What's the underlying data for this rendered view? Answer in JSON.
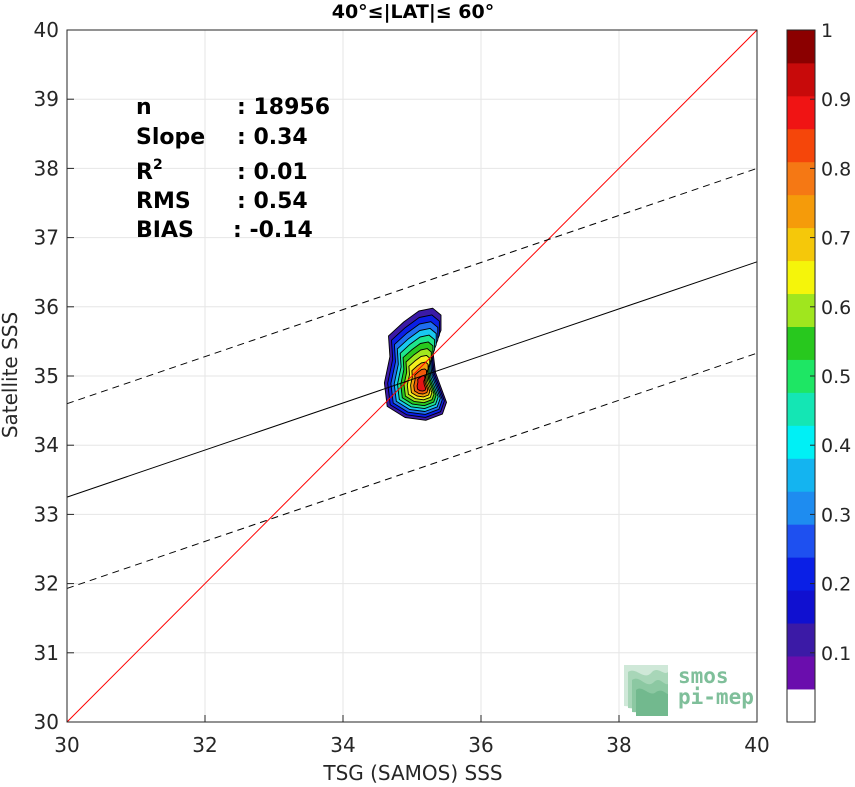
{
  "chart_data": {
    "type": "contour",
    "title": "40°≤|LAT|≤ 60°",
    "xlabel": "TSG (SAMOS) SSS",
    "ylabel": "Satellite SSS",
    "xlim": [
      30,
      40
    ],
    "ylim": [
      30,
      40
    ],
    "xticks": [
      "30",
      "32",
      "34",
      "36",
      "38",
      "40"
    ],
    "yticks": [
      "30",
      "31",
      "32",
      "33",
      "34",
      "35",
      "36",
      "37",
      "38",
      "39",
      "40"
    ],
    "grid": true,
    "lines": [
      {
        "style": "red-solid",
        "x": [
          30,
          40
        ],
        "y": [
          30,
          40
        ]
      },
      {
        "style": "black-solid",
        "x": [
          30,
          40
        ],
        "y": [
          33.25,
          36.65
        ]
      },
      {
        "style": "black-dashed",
        "x": [
          30,
          40
        ],
        "y": [
          34.6,
          38.0
        ]
      },
      {
        "style": "black-dashed",
        "x": [
          30,
          40
        ],
        "y": [
          31.93,
          35.33
        ]
      }
    ],
    "stats": [
      {
        "label": "n",
        "value": ": 18956"
      },
      {
        "label": "Slope",
        "value": ": 0.34"
      },
      {
        "label": "R",
        "sup": "2",
        "value": ": 0.01"
      },
      {
        "label": "RMS",
        "value": ": 0.54"
      },
      {
        "label": "BIAS",
        "value": ": -0.14"
      }
    ],
    "density_peak": {
      "x": 35.15,
      "y": 34.85
    },
    "contour_levels": [
      {
        "level": 0.05,
        "color": "#3b1aa6"
      },
      {
        "level": 0.15,
        "color": "#0a1fe6"
      },
      {
        "level": 0.25,
        "color": "#1e6ef0"
      },
      {
        "level": 0.35,
        "color": "#19c8f0"
      },
      {
        "level": 0.45,
        "color": "#1ee68c"
      },
      {
        "level": 0.55,
        "color": "#28c81e"
      },
      {
        "level": 0.6,
        "color": "#a0e61e"
      },
      {
        "level": 0.65,
        "color": "#f5f01e"
      },
      {
        "level": 0.75,
        "color": "#f5a00a"
      },
      {
        "level": 0.85,
        "color": "#f05a0a"
      },
      {
        "level": 0.95,
        "color": "#e61414"
      }
    ],
    "colorbar": {
      "range": [
        0,
        1
      ],
      "ticks": [
        "0.1",
        "0.2",
        "0.3",
        "0.4",
        "0.5",
        "0.6",
        "0.7",
        "0.8",
        "0.9",
        "1"
      ],
      "colors": [
        "#ffffff",
        "#6a0dad",
        "#3b1aa6",
        "#1010d0",
        "#0a1fe6",
        "#1e50f0",
        "#1e8cf0",
        "#14b4f0",
        "#00f0f5",
        "#14e6b4",
        "#1ee664",
        "#28c81e",
        "#a0e61e",
        "#f5f50a",
        "#f5c80a",
        "#f59b0a",
        "#f57814",
        "#f5460a",
        "#f01414",
        "#c80a0a",
        "#8b0000"
      ]
    },
    "colors": {
      "identity": "#ff0000",
      "fit": "#000000",
      "grid": "#e6e6e6"
    }
  },
  "logo": {
    "line1": "smos",
    "line2": "pi-mep"
  }
}
